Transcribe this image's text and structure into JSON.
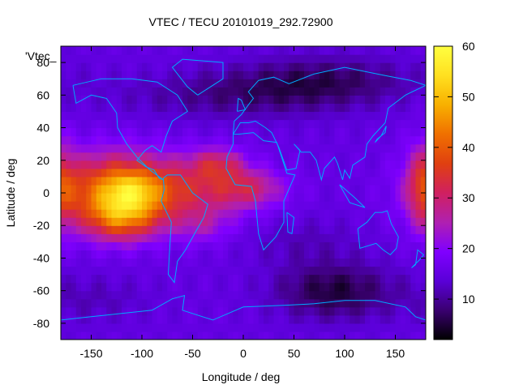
{
  "chart_data": {
    "type": "heatmap",
    "title": "VTEC / TECU 20101019_292.72900",
    "xlabel": "Longitude / deg",
    "ylabel": "Latitude / deg",
    "xlim": [
      -180,
      180
    ],
    "ylim": [
      -90,
      90
    ],
    "x_ticks": [
      -150,
      -100,
      -50,
      0,
      50,
      100,
      150
    ],
    "y_ticks": [
      -80,
      -60,
      -40,
      -20,
      0,
      20,
      40,
      60,
      80
    ],
    "colorbar": {
      "ticks": [
        10,
        20,
        30,
        40,
        50,
        60
      ],
      "range": [
        2,
        60
      ],
      "palette": [
        "#000000",
        "#3a0070",
        "#5a00d8",
        "#8000ff",
        "#b020b0",
        "#d02060",
        "#e04010",
        "#f07000",
        "#f8b000",
        "#ffe020",
        "#ffff40"
      ]
    },
    "series_label": "'Vtec_",
    "grid": false,
    "legend": "top-left",
    "overlay": "coastlines",
    "colors": {
      "coastline": "#00aaff",
      "frame": "#000000"
    },
    "field": {
      "background_tec": 15,
      "blobs": [
        {
          "lon": -130,
          "lat": 2,
          "sigma_lon": 40,
          "sigma_lat": 16,
          "value": 24
        },
        {
          "lon": -120,
          "lat": -15,
          "sigma_lon": 25,
          "sigma_lat": 10,
          "value": 18
        },
        {
          "lon": -110,
          "lat": 2,
          "sigma_lon": 18,
          "sigma_lat": 8,
          "value": 10
        },
        {
          "lon": -60,
          "lat": 2,
          "sigma_lon": 45,
          "sigma_lat": 14,
          "value": 14
        },
        {
          "lon": -25,
          "lat": 18,
          "sigma_lon": 18,
          "sigma_lat": 7,
          "value": 12
        },
        {
          "lon": 5,
          "lat": 3,
          "sigma_lon": 25,
          "sigma_lat": 8,
          "value": 12
        },
        {
          "lon": -40,
          "lat": -20,
          "sigma_lon": 20,
          "sigma_lat": 8,
          "value": 6
        },
        {
          "lon": 178,
          "lat": 5,
          "sigma_lon": 12,
          "sigma_lat": 18,
          "value": 14
        },
        {
          "lon": 0,
          "lat": 60,
          "sigma_lon": 80,
          "sigma_lat": 10,
          "value": -6
        },
        {
          "lon": 90,
          "lat": -60,
          "sigma_lon": 40,
          "sigma_lat": 12,
          "value": -10
        },
        {
          "lon": 80,
          "lat": 70,
          "sigma_lon": 60,
          "sigma_lat": 10,
          "value": -7
        },
        {
          "lon": 60,
          "lat": -30,
          "sigma_lon": 40,
          "sigma_lat": 10,
          "value": -3
        },
        {
          "lon": -150,
          "lat": -65,
          "sigma_lon": 40,
          "sigma_lat": 10,
          "value": -3
        }
      ]
    }
  }
}
